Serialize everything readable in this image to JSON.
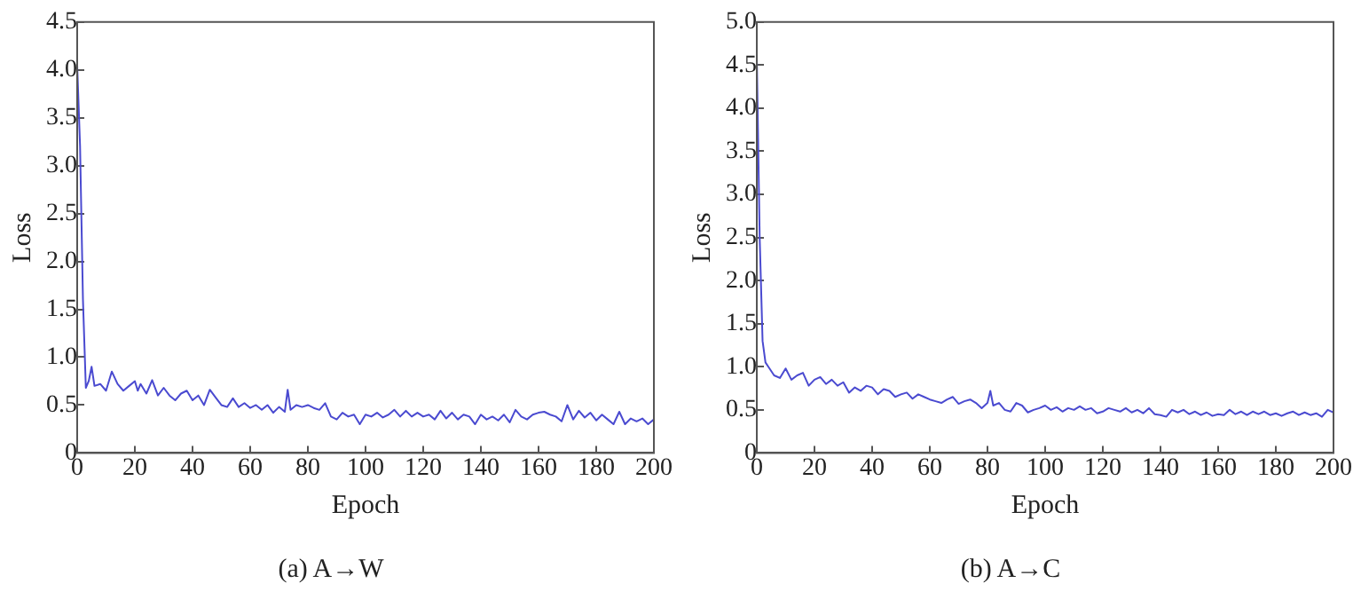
{
  "chart_data": [
    {
      "type": "line",
      "title": "(a) A→W",
      "xlabel": "Epoch",
      "ylabel": "Loss",
      "grid": false,
      "legend": false,
      "marker": "none",
      "xlim": [
        0,
        200
      ],
      "xticks": [
        0,
        20,
        40,
        60,
        80,
        100,
        120,
        140,
        160,
        180,
        200
      ],
      "ylim": [
        0,
        4.5
      ],
      "yticks": [
        0,
        0.5,
        {
          "value": 1,
          "label": "1.0"
        },
        1.5,
        {
          "value": 2,
          "label": "2.0"
        },
        2.5,
        {
          "value": 3,
          "label": "3.0"
        },
        3.5,
        {
          "value": 4,
          "label": "4.0"
        },
        4.5
      ],
      "x": [
        0,
        1,
        2,
        3,
        4,
        5,
        6,
        8,
        10,
        12,
        14,
        16,
        18,
        20,
        21,
        22,
        24,
        26,
        28,
        30,
        32,
        34,
        36,
        38,
        40,
        42,
        44,
        46,
        48,
        50,
        52,
        54,
        56,
        58,
        60,
        62,
        64,
        66,
        68,
        70,
        72,
        73,
        74,
        76,
        78,
        80,
        82,
        84,
        86,
        88,
        90,
        92,
        94,
        96,
        98,
        100,
        102,
        104,
        106,
        108,
        110,
        112,
        114,
        116,
        118,
        120,
        122,
        124,
        126,
        128,
        130,
        132,
        134,
        136,
        138,
        140,
        142,
        144,
        146,
        148,
        150,
        152,
        154,
        156,
        158,
        160,
        162,
        164,
        166,
        168,
        170,
        172,
        174,
        176,
        178,
        180,
        182,
        184,
        186,
        188,
        190,
        192,
        194,
        196,
        198,
        200
      ],
      "series": [
        {
          "color": "#4a4ad0",
          "values": [
            4.05,
            3.2,
            1.6,
            0.68,
            0.75,
            0.9,
            0.7,
            0.72,
            0.65,
            0.85,
            0.72,
            0.65,
            0.7,
            0.75,
            0.65,
            0.72,
            0.62,
            0.76,
            0.6,
            0.68,
            0.6,
            0.55,
            0.62,
            0.65,
            0.55,
            0.6,
            0.5,
            0.66,
            0.58,
            0.5,
            0.48,
            0.57,
            0.48,
            0.52,
            0.47,
            0.5,
            0.45,
            0.5,
            0.42,
            0.48,
            0.43,
            0.66,
            0.45,
            0.5,
            0.48,
            0.5,
            0.47,
            0.45,
            0.52,
            0.38,
            0.35,
            0.42,
            0.38,
            0.4,
            0.3,
            0.4,
            0.38,
            0.42,
            0.37,
            0.4,
            0.45,
            0.38,
            0.44,
            0.38,
            0.42,
            0.38,
            0.4,
            0.35,
            0.44,
            0.36,
            0.42,
            0.35,
            0.4,
            0.38,
            0.3,
            0.4,
            0.35,
            0.38,
            0.34,
            0.4,
            0.32,
            0.45,
            0.38,
            0.35,
            0.4,
            0.42,
            0.43,
            0.4,
            0.38,
            0.33,
            0.5,
            0.35,
            0.44,
            0.37,
            0.42,
            0.34,
            0.4,
            0.35,
            0.3,
            0.43,
            0.3,
            0.36,
            0.33,
            0.36,
            0.3,
            0.35
          ]
        }
      ]
    },
    {
      "type": "line",
      "title": "(b) A→C",
      "xlabel": "Epoch",
      "ylabel": "Loss",
      "grid": false,
      "legend": false,
      "marker": "none",
      "xlim": [
        0,
        200
      ],
      "xticks": [
        0,
        20,
        40,
        60,
        80,
        100,
        120,
        140,
        160,
        180,
        200
      ],
      "ylim": [
        0,
        5
      ],
      "yticks": [
        0,
        0.5,
        {
          "value": 1,
          "label": "1.0"
        },
        1.5,
        {
          "value": 2,
          "label": "2.0"
        },
        2.5,
        {
          "value": 3,
          "label": "3.0"
        },
        3.5,
        {
          "value": 4,
          "label": "4.0"
        },
        4.5,
        {
          "value": 5,
          "label": "5.0"
        }
      ],
      "x": [
        0,
        1,
        2,
        3,
        4,
        6,
        8,
        10,
        12,
        14,
        16,
        18,
        20,
        22,
        24,
        26,
        28,
        30,
        32,
        34,
        36,
        38,
        40,
        42,
        44,
        46,
        48,
        50,
        52,
        54,
        56,
        58,
        60,
        62,
        64,
        66,
        68,
        70,
        72,
        74,
        76,
        78,
        80,
        81,
        82,
        84,
        86,
        88,
        90,
        92,
        94,
        96,
        98,
        100,
        102,
        104,
        106,
        108,
        110,
        112,
        114,
        116,
        118,
        120,
        122,
        124,
        126,
        128,
        130,
        132,
        134,
        136,
        138,
        140,
        142,
        144,
        146,
        148,
        150,
        152,
        154,
        156,
        158,
        160,
        162,
        164,
        166,
        168,
        170,
        172,
        174,
        176,
        178,
        180,
        182,
        184,
        186,
        188,
        190,
        192,
        194,
        196,
        198,
        200
      ],
      "series": [
        {
          "color": "#4a4ad0",
          "values": [
            4.6,
            2.5,
            1.3,
            1.05,
            1.0,
            0.9,
            0.87,
            0.98,
            0.85,
            0.9,
            0.93,
            0.78,
            0.85,
            0.88,
            0.8,
            0.85,
            0.78,
            0.82,
            0.7,
            0.76,
            0.72,
            0.78,
            0.76,
            0.68,
            0.74,
            0.72,
            0.65,
            0.68,
            0.7,
            0.63,
            0.68,
            0.65,
            0.62,
            0.6,
            0.58,
            0.62,
            0.65,
            0.57,
            0.6,
            0.62,
            0.58,
            0.52,
            0.58,
            0.72,
            0.55,
            0.58,
            0.5,
            0.48,
            0.58,
            0.55,
            0.47,
            0.5,
            0.52,
            0.55,
            0.5,
            0.53,
            0.48,
            0.52,
            0.5,
            0.54,
            0.5,
            0.52,
            0.46,
            0.48,
            0.52,
            0.5,
            0.48,
            0.52,
            0.47,
            0.5,
            0.46,
            0.52,
            0.45,
            0.44,
            0.42,
            0.5,
            0.47,
            0.5,
            0.45,
            0.48,
            0.44,
            0.47,
            0.43,
            0.45,
            0.44,
            0.5,
            0.45,
            0.48,
            0.44,
            0.48,
            0.45,
            0.48,
            0.44,
            0.46,
            0.43,
            0.46,
            0.48,
            0.44,
            0.47,
            0.44,
            0.46,
            0.42,
            0.5,
            0.47
          ]
        }
      ]
    }
  ]
}
